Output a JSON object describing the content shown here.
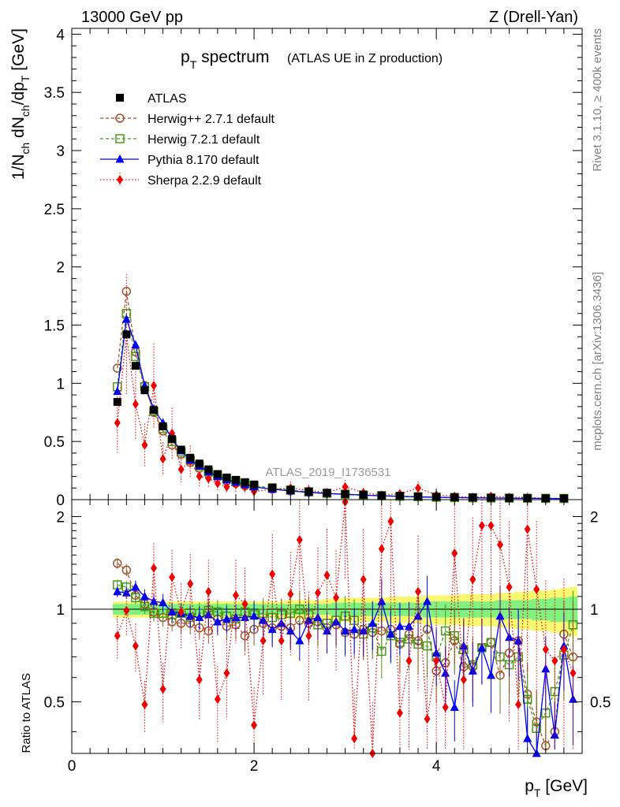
{
  "header": {
    "left": "13000 GeV pp",
    "right": "Z (Drell-Yan)"
  },
  "side_text": {
    "top": "Rivet 3.1.10, ≥ 400k events",
    "bottom": "mcplots.cern.ch [arXiv:1306.3436]"
  },
  "watermark": "ATLAS_2019_I1736531",
  "colors": {
    "atlas": "#000000",
    "herwigpp": "#a0522d",
    "herwig7": "#4a9a1a",
    "pythia": "#0000ee",
    "sherpa": "#ee0000",
    "band_inner": "#80f080",
    "band_outer": "#f8f870"
  },
  "chart_data": [
    {
      "type": "line",
      "title_main": "p",
      "title_sub": "T",
      "title_rest": " spectrum",
      "title_note": "(ATLAS UE in Z production)",
      "ylabel": "1/N_ch dN_ch/dp_T [GeV]",
      "ylabel_parts": [
        "1/N",
        "ch",
        " dN",
        "ch",
        "/dp",
        "T",
        " [GeV]"
      ],
      "xlim": [
        0,
        5.6
      ],
      "ylim": [
        0,
        4.05
      ],
      "yticks": [
        0,
        0.5,
        1,
        1.5,
        2,
        2.5,
        3,
        3.5,
        4
      ],
      "ytick_labels": [
        "0",
        "0.5",
        "1",
        "1.5",
        "2",
        "2.5",
        "3",
        "3.5",
        "4"
      ],
      "legend": [
        "ATLAS",
        "Herwig++ 2.7.1 default",
        "Herwig 7.2.1 default",
        "Pythia 8.170 default",
        "Sherpa 2.2.9 default"
      ],
      "x": [
        0.5,
        0.6,
        0.7,
        0.8,
        0.9,
        1.0,
        1.1,
        1.2,
        1.3,
        1.4,
        1.5,
        1.6,
        1.7,
        1.8,
        1.9,
        2.0,
        2.2,
        2.4,
        2.6,
        2.8,
        3.0,
        3.2,
        3.4,
        3.6,
        3.8,
        4.0,
        4.2,
        4.4,
        4.6,
        4.8,
        5.0,
        5.2,
        5.4
      ],
      "series": [
        {
          "name": "ATLAS",
          "values": [
            0.84,
            1.42,
            1.15,
            0.94,
            0.77,
            0.63,
            0.52,
            0.43,
            0.36,
            0.31,
            0.26,
            0.22,
            0.19,
            0.17,
            0.15,
            0.13,
            0.105,
            0.085,
            0.07,
            0.058,
            0.05,
            0.043,
            0.037,
            0.032,
            0.028,
            0.024,
            0.021,
            0.019,
            0.017,
            0.015,
            0.013,
            0.012,
            0.011
          ]
        },
        {
          "name": "Herwig++ 2.7.1 default",
          "values": [
            1.13,
            1.79,
            1.27,
            0.98,
            0.75,
            0.59,
            0.47,
            0.39,
            0.32,
            0.27,
            0.22,
            0.19,
            0.16,
            0.14,
            0.12,
            0.11,
            0.09,
            0.075,
            0.062,
            0.052,
            0.044,
            0.038,
            0.033,
            0.028,
            0.024,
            0.02,
            0.018,
            0.016,
            0.014,
            0.012,
            0.011,
            0.01,
            0.009
          ]
        },
        {
          "name": "Herwig 7.2.1 default",
          "values": [
            0.97,
            1.6,
            1.23,
            0.97,
            0.76,
            0.61,
            0.5,
            0.41,
            0.34,
            0.29,
            0.24,
            0.21,
            0.18,
            0.16,
            0.14,
            0.12,
            0.1,
            0.082,
            0.067,
            0.055,
            0.046,
            0.04,
            0.034,
            0.029,
            0.025,
            0.021,
            0.018,
            0.016,
            0.014,
            0.013,
            0.012,
            0.011,
            0.01
          ]
        },
        {
          "name": "Pythia 8.170 default",
          "values": [
            0.93,
            1.55,
            1.33,
            0.98,
            0.78,
            0.66,
            0.52,
            0.42,
            0.34,
            0.29,
            0.24,
            0.2,
            0.17,
            0.15,
            0.13,
            0.11,
            0.09,
            0.075,
            0.063,
            0.053,
            0.046,
            0.039,
            0.033,
            0.028,
            0.024,
            0.02,
            0.018,
            0.016,
            0.014,
            0.012,
            0.011,
            0.01,
            0.009
          ]
        },
        {
          "name": "Sherpa 2.2.9 default",
          "values": [
            0.66,
            1.42,
            0.82,
            0.47,
            0.98,
            0.35,
            0.57,
            0.26,
            0.33,
            0.2,
            0.18,
            0.14,
            0.11,
            0.13,
            0.11,
            0.07,
            0.09,
            0.1,
            0.08,
            0.06,
            0.11,
            0.06,
            0.04,
            0.05,
            0.1,
            0.04,
            0.03,
            0.02,
            0.03,
            0.02,
            0.02,
            0.01,
            0.01
          ]
        }
      ]
    },
    {
      "type": "line",
      "ylabel": "Ratio to ATLAS",
      "xlabel": "p_T [GeV]",
      "xlabel_parts": [
        "p",
        "T",
        " [GeV]"
      ],
      "xlim": [
        0,
        5.6
      ],
      "ylim": [
        0.34,
        2.27
      ],
      "yticks": [
        0.5,
        1,
        2
      ],
      "ytick_labels": [
        "0.5",
        "1",
        "2"
      ],
      "xticks": [
        0,
        2,
        4
      ],
      "xtick_labels": [
        "0",
        "2",
        "4"
      ],
      "x": [
        0.5,
        0.6,
        0.7,
        0.8,
        0.9,
        1.0,
        1.1,
        1.2,
        1.3,
        1.4,
        1.5,
        1.6,
        1.7,
        1.8,
        1.9,
        2.0,
        2.1,
        2.2,
        2.3,
        2.4,
        2.5,
        2.6,
        2.7,
        2.8,
        2.9,
        3.0,
        3.1,
        3.2,
        3.3,
        3.4,
        3.5,
        3.6,
        3.7,
        3.8,
        3.9,
        4.0,
        4.1,
        4.2,
        4.3,
        4.4,
        4.5,
        4.6,
        4.7,
        4.8,
        4.9,
        5.0,
        5.1,
        5.2,
        5.3,
        5.4,
        5.5
      ],
      "band_half_inner": [
        0.04,
        0.04,
        0.04,
        0.04,
        0.04,
        0.04,
        0.04,
        0.04,
        0.04,
        0.04,
        0.04,
        0.04,
        0.04,
        0.04,
        0.04,
        0.04,
        0.04,
        0.04,
        0.04,
        0.04,
        0.04,
        0.04,
        0.04,
        0.04,
        0.05,
        0.05,
        0.05,
        0.05,
        0.05,
        0.05,
        0.05,
        0.05,
        0.05,
        0.05,
        0.06,
        0.06,
        0.06,
        0.06,
        0.06,
        0.06,
        0.06,
        0.06,
        0.07,
        0.07,
        0.07,
        0.07,
        0.08,
        0.08,
        0.09,
        0.09,
        0.1
      ],
      "band_half_outer": [
        0.06,
        0.06,
        0.06,
        0.06,
        0.06,
        0.06,
        0.06,
        0.06,
        0.06,
        0.06,
        0.06,
        0.06,
        0.06,
        0.06,
        0.06,
        0.06,
        0.06,
        0.06,
        0.06,
        0.07,
        0.07,
        0.07,
        0.07,
        0.08,
        0.08,
        0.09,
        0.09,
        0.09,
        0.09,
        0.09,
        0.1,
        0.1,
        0.1,
        0.1,
        0.11,
        0.11,
        0.11,
        0.11,
        0.12,
        0.12,
        0.12,
        0.12,
        0.13,
        0.13,
        0.14,
        0.14,
        0.15,
        0.15,
        0.16,
        0.17,
        0.18
      ],
      "series": [
        {
          "name": "Herwig++ 2.7.1 default",
          "values": [
            1.41,
            1.34,
            1.11,
            1.04,
            0.98,
            0.94,
            0.91,
            0.9,
            0.9,
            0.87,
            0.85,
            0.93,
            0.88,
            0.89,
            0.82,
            0.86,
            0.9,
            0.87,
            0.88,
            0.87,
            0.92,
            0.9,
            0.91,
            0.87,
            0.89,
            0.84,
            0.83,
            0.86,
            0.84,
            0.85,
            0.86,
            0.77,
            0.83,
            0.79,
            0.86,
            0.63,
            0.67,
            0.79,
            0.65,
            0.65,
            0.75,
            0.78,
            0.61,
            0.72,
            0.79,
            0.53,
            0.43,
            0.36,
            0.4,
            0.83,
            0.7
          ]
        },
        {
          "name": "Herwig 7.2.1 default",
          "values": [
            1.2,
            1.18,
            1.09,
            1.02,
            0.97,
            0.97,
            0.96,
            0.97,
            0.94,
            0.97,
            0.99,
            0.98,
            0.95,
            0.93,
            0.98,
            0.96,
            0.97,
            0.94,
            0.96,
            0.97,
            1.0,
            0.96,
            0.89,
            0.9,
            0.92,
            0.95,
            0.92,
            0.83,
            0.87,
            0.73,
            0.82,
            0.78,
            0.8,
            0.77,
            0.76,
            0.7,
            0.85,
            0.82,
            0.74,
            0.66,
            0.75,
            0.78,
            0.7,
            0.66,
            0.7,
            0.51,
            0.41,
            0.46,
            0.54,
            0.71,
            0.89
          ]
        },
        {
          "name": "Pythia 8.170 default",
          "values": [
            1.14,
            1.13,
            1.18,
            1.1,
            1.06,
            1.05,
            0.98,
            0.97,
            0.95,
            0.94,
            0.96,
            0.91,
            0.93,
            0.94,
            0.94,
            0.95,
            0.92,
            0.86,
            0.9,
            0.85,
            0.79,
            0.92,
            0.94,
            0.85,
            0.91,
            0.85,
            0.86,
            0.85,
            0.9,
            1.06,
            0.83,
            0.88,
            0.88,
            0.95,
            1.06,
            0.72,
            0.62,
            0.48,
            0.76,
            0.63,
            0.75,
            0.61,
            0.95,
            0.81,
            0.79,
            0.38,
            0.32,
            0.64,
            0.39,
            0.76,
            0.51
          ]
        },
        {
          "name": "Sherpa 2.2.9 default",
          "values": [
            0.82,
            0.99,
            0.76,
            0.49,
            1.36,
            0.55,
            1.27,
            0.98,
            1.21,
            0.59,
            1.14,
            0.51,
            0.62,
            1.11,
            1.04,
            0.42,
            0.79,
            1.3,
            0.79,
            1.12,
            1.68,
            0.82,
            1.13,
            1.29,
            1.09,
            2.23,
            0.38,
            1.25,
            0.34,
            1.57,
            1.93,
            0.46,
            0.68,
            1.14,
            0.44,
            0.68,
            0.48,
            1.52,
            0.59,
            1.25,
            1.87,
            1.87,
            1.62,
            1.18,
            0.49,
            1.82,
            1.16,
            0.74,
            0.68,
            0.74,
            0.62
          ]
        }
      ]
    }
  ]
}
